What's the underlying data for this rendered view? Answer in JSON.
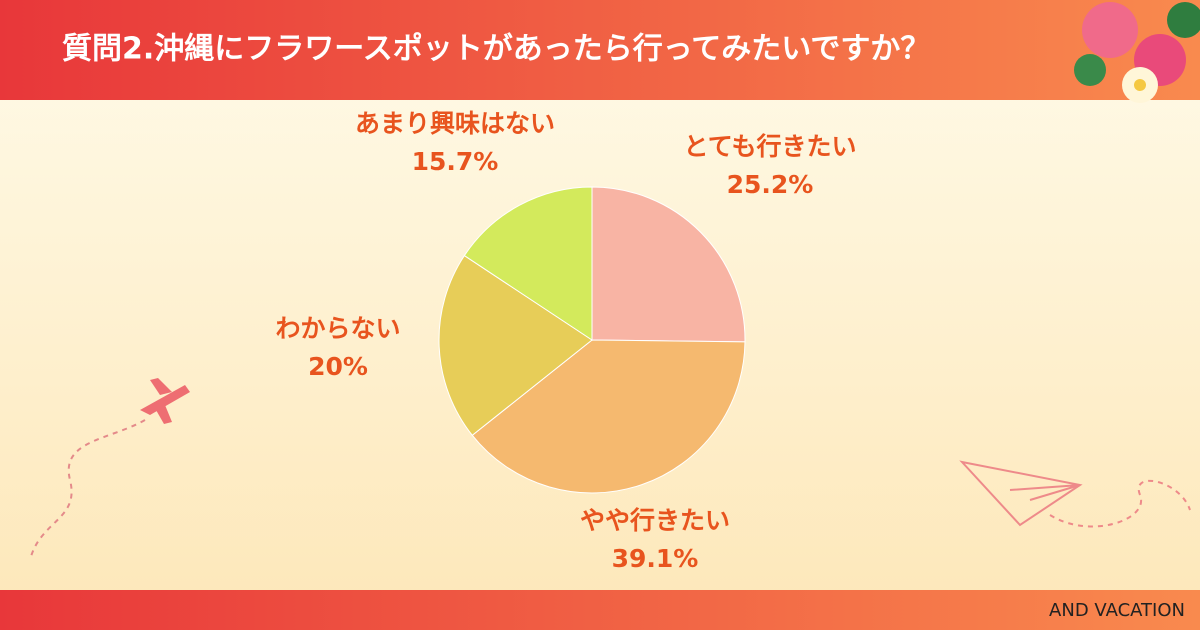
{
  "chart_data": {
    "type": "pie",
    "title": "質問2.沖縄にフラワースポットがあったら行ってみたいですか？",
    "categories": [
      "とても行きたい",
      "やや行きたい",
      "わからない",
      "あまり興味はない"
    ],
    "values": [
      25.2,
      39.1,
      20,
      15.7
    ],
    "value_labels": [
      "25.2%",
      "39.1%",
      "20%",
      "15.7%"
    ],
    "colors": [
      "#f8b4a4",
      "#f5b96f",
      "#e7cd58",
      "#d3ea5c"
    ]
  },
  "footer": {
    "brand": "AND VACATION"
  }
}
